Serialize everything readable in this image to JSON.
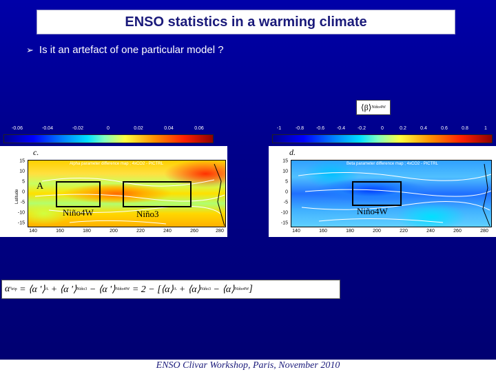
{
  "slide": {
    "title": "ENSO statistics in a warming climate",
    "bullet_marker": "➢",
    "bullet": "Is it an artefact of one particular model ?",
    "footer": "ENSO Clivar Workshop, Paris, November 2010"
  },
  "beta_label": {
    "symbol": "⟨β⟩",
    "subscript": "Niño4W"
  },
  "colors": {
    "background": "#00008f",
    "title_text": "#1a1a7a",
    "box": "#000000"
  },
  "colorbar_left": {
    "ticks": [
      "-0.06",
      "-0.04",
      "-0.02",
      "0",
      "0.02",
      "0.04",
      "0.06"
    ]
  },
  "colorbar_right": {
    "ticks": [
      "-1",
      "-0.8",
      "-0.6",
      "-0.4",
      "-0.2",
      "0",
      "0.2",
      "0.4",
      "0.6",
      "0.8",
      "1"
    ]
  },
  "map_left": {
    "letter": "c.",
    "title": "Alpha parameter difference map ; 4xCO2 - PICTRL",
    "ylabel": "Latitude",
    "region_a": "A",
    "box_labels": {
      "nino4w": "Niño4W",
      "nino3": "Niño3"
    }
  },
  "map_right": {
    "letter": "d.",
    "title": "Beta parameter difference map ; 4xCO2 - PICTRL",
    "box_labels": {
      "nino4w": "Niño4W"
    }
  },
  "axes": {
    "lat_ticks": [
      "15",
      "10",
      "5",
      "0",
      "-5",
      "-10",
      "-15"
    ],
    "lon_ticks": [
      "140",
      "160",
      "180",
      "200",
      "220",
      "240",
      "260",
      "280"
    ]
  },
  "equation": {
    "lhs": "α",
    "lhs_sub": "trip",
    "lhs_sup": "'",
    "eq1": "= ⟨α '⟩",
    "eq1_sub": "A",
    "plus1": "+ ⟨α '⟩",
    "plus1_sub": "Niño3",
    "minus1": "− ⟨α '⟩",
    "minus1_sub": "Niño4W",
    "eq2": "= 2 − [⟨α⟩",
    "eq2_sub": "A",
    "plus2": "+ ⟨α⟩",
    "plus2_sub": "Niño3",
    "minus2": "− ⟨α⟩",
    "minus2_sub": "Niño4W",
    "close": "]"
  }
}
